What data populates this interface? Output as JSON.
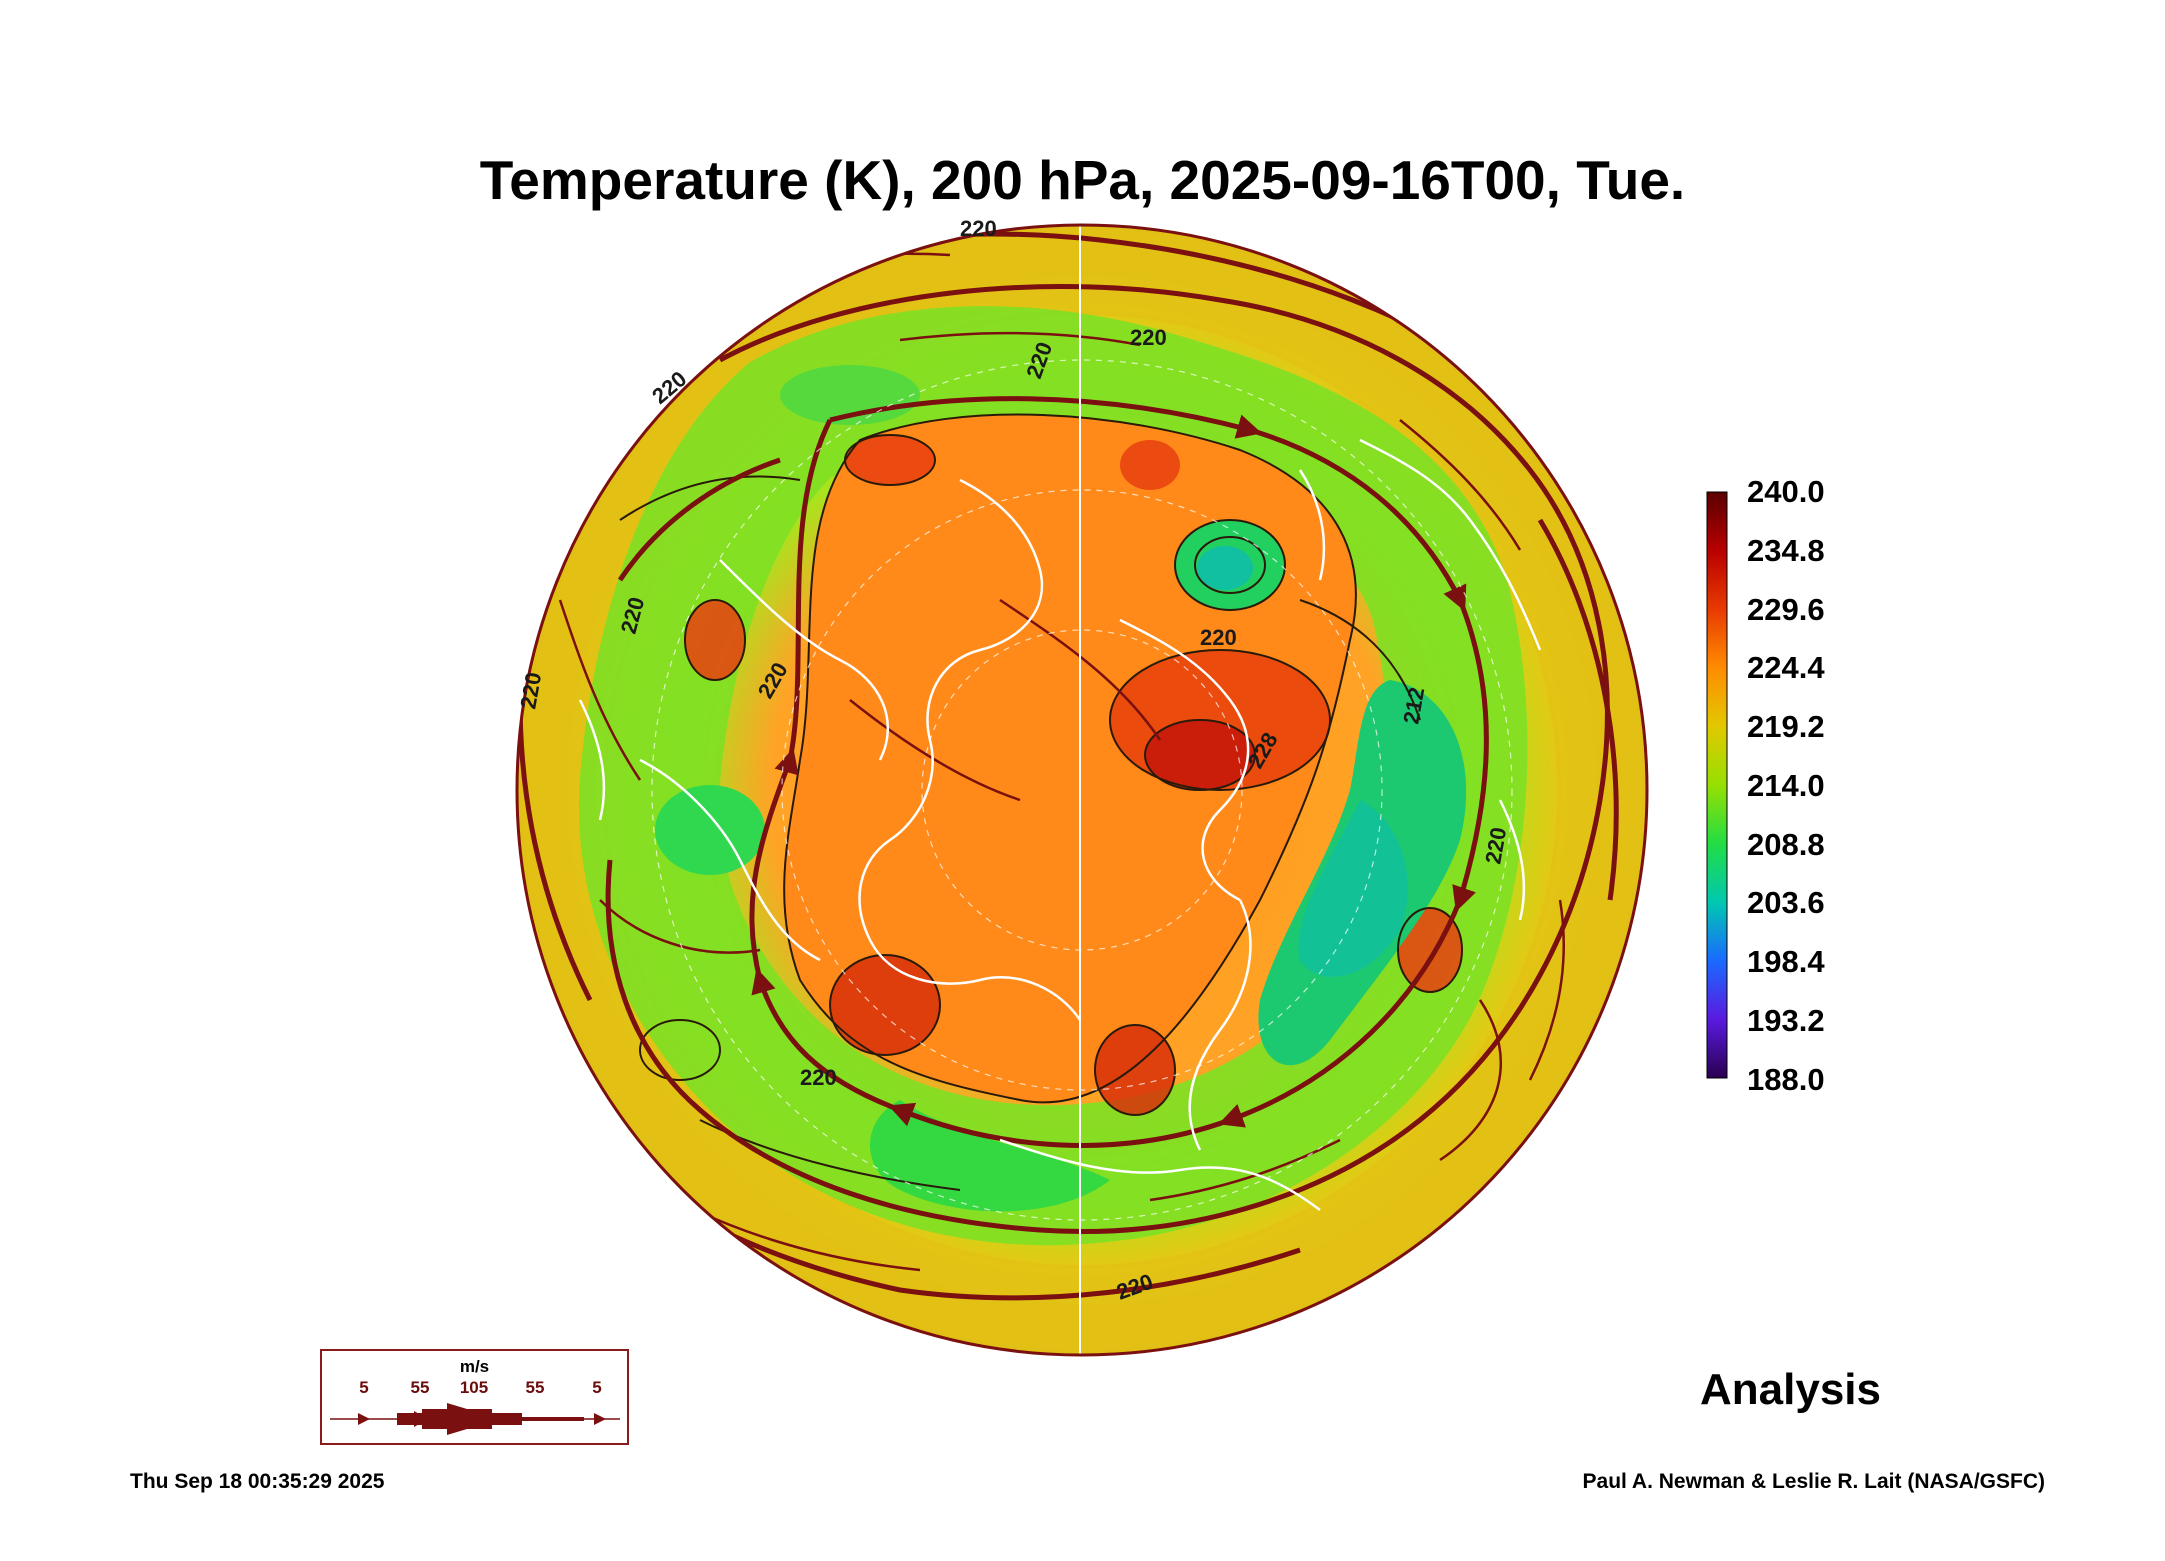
{
  "title": "Temperature (K), 200 hPa, 2025-09-16T00, Tue.",
  "colorbar": {
    "labels": [
      "240.0",
      "234.8",
      "229.6",
      "224.4",
      "219.2",
      "214.0",
      "208.8",
      "203.6",
      "198.4",
      "193.2",
      "188.0"
    ],
    "colors": [
      "#5a0000",
      "#b80000",
      "#e83a00",
      "#ff8c00",
      "#e2c800",
      "#96e000",
      "#22dd44",
      "#00c8b0",
      "#1a6aff",
      "#5a1ae0",
      "#2a0050"
    ]
  },
  "contour_labels": [
    "220",
    "220",
    "220",
    "220",
    "220",
    "220",
    "220",
    "220",
    "228",
    "212",
    "220",
    "220",
    "220"
  ],
  "legend": {
    "unit": "m/s",
    "values": [
      "5",
      "55",
      "105",
      "55",
      "5"
    ]
  },
  "status_label": "Analysis",
  "timestamp": "Thu Sep 18 00:35:29 2025",
  "credit": "Paul A. Newman & Leslie R. Lait (NASA/GSFC)"
}
